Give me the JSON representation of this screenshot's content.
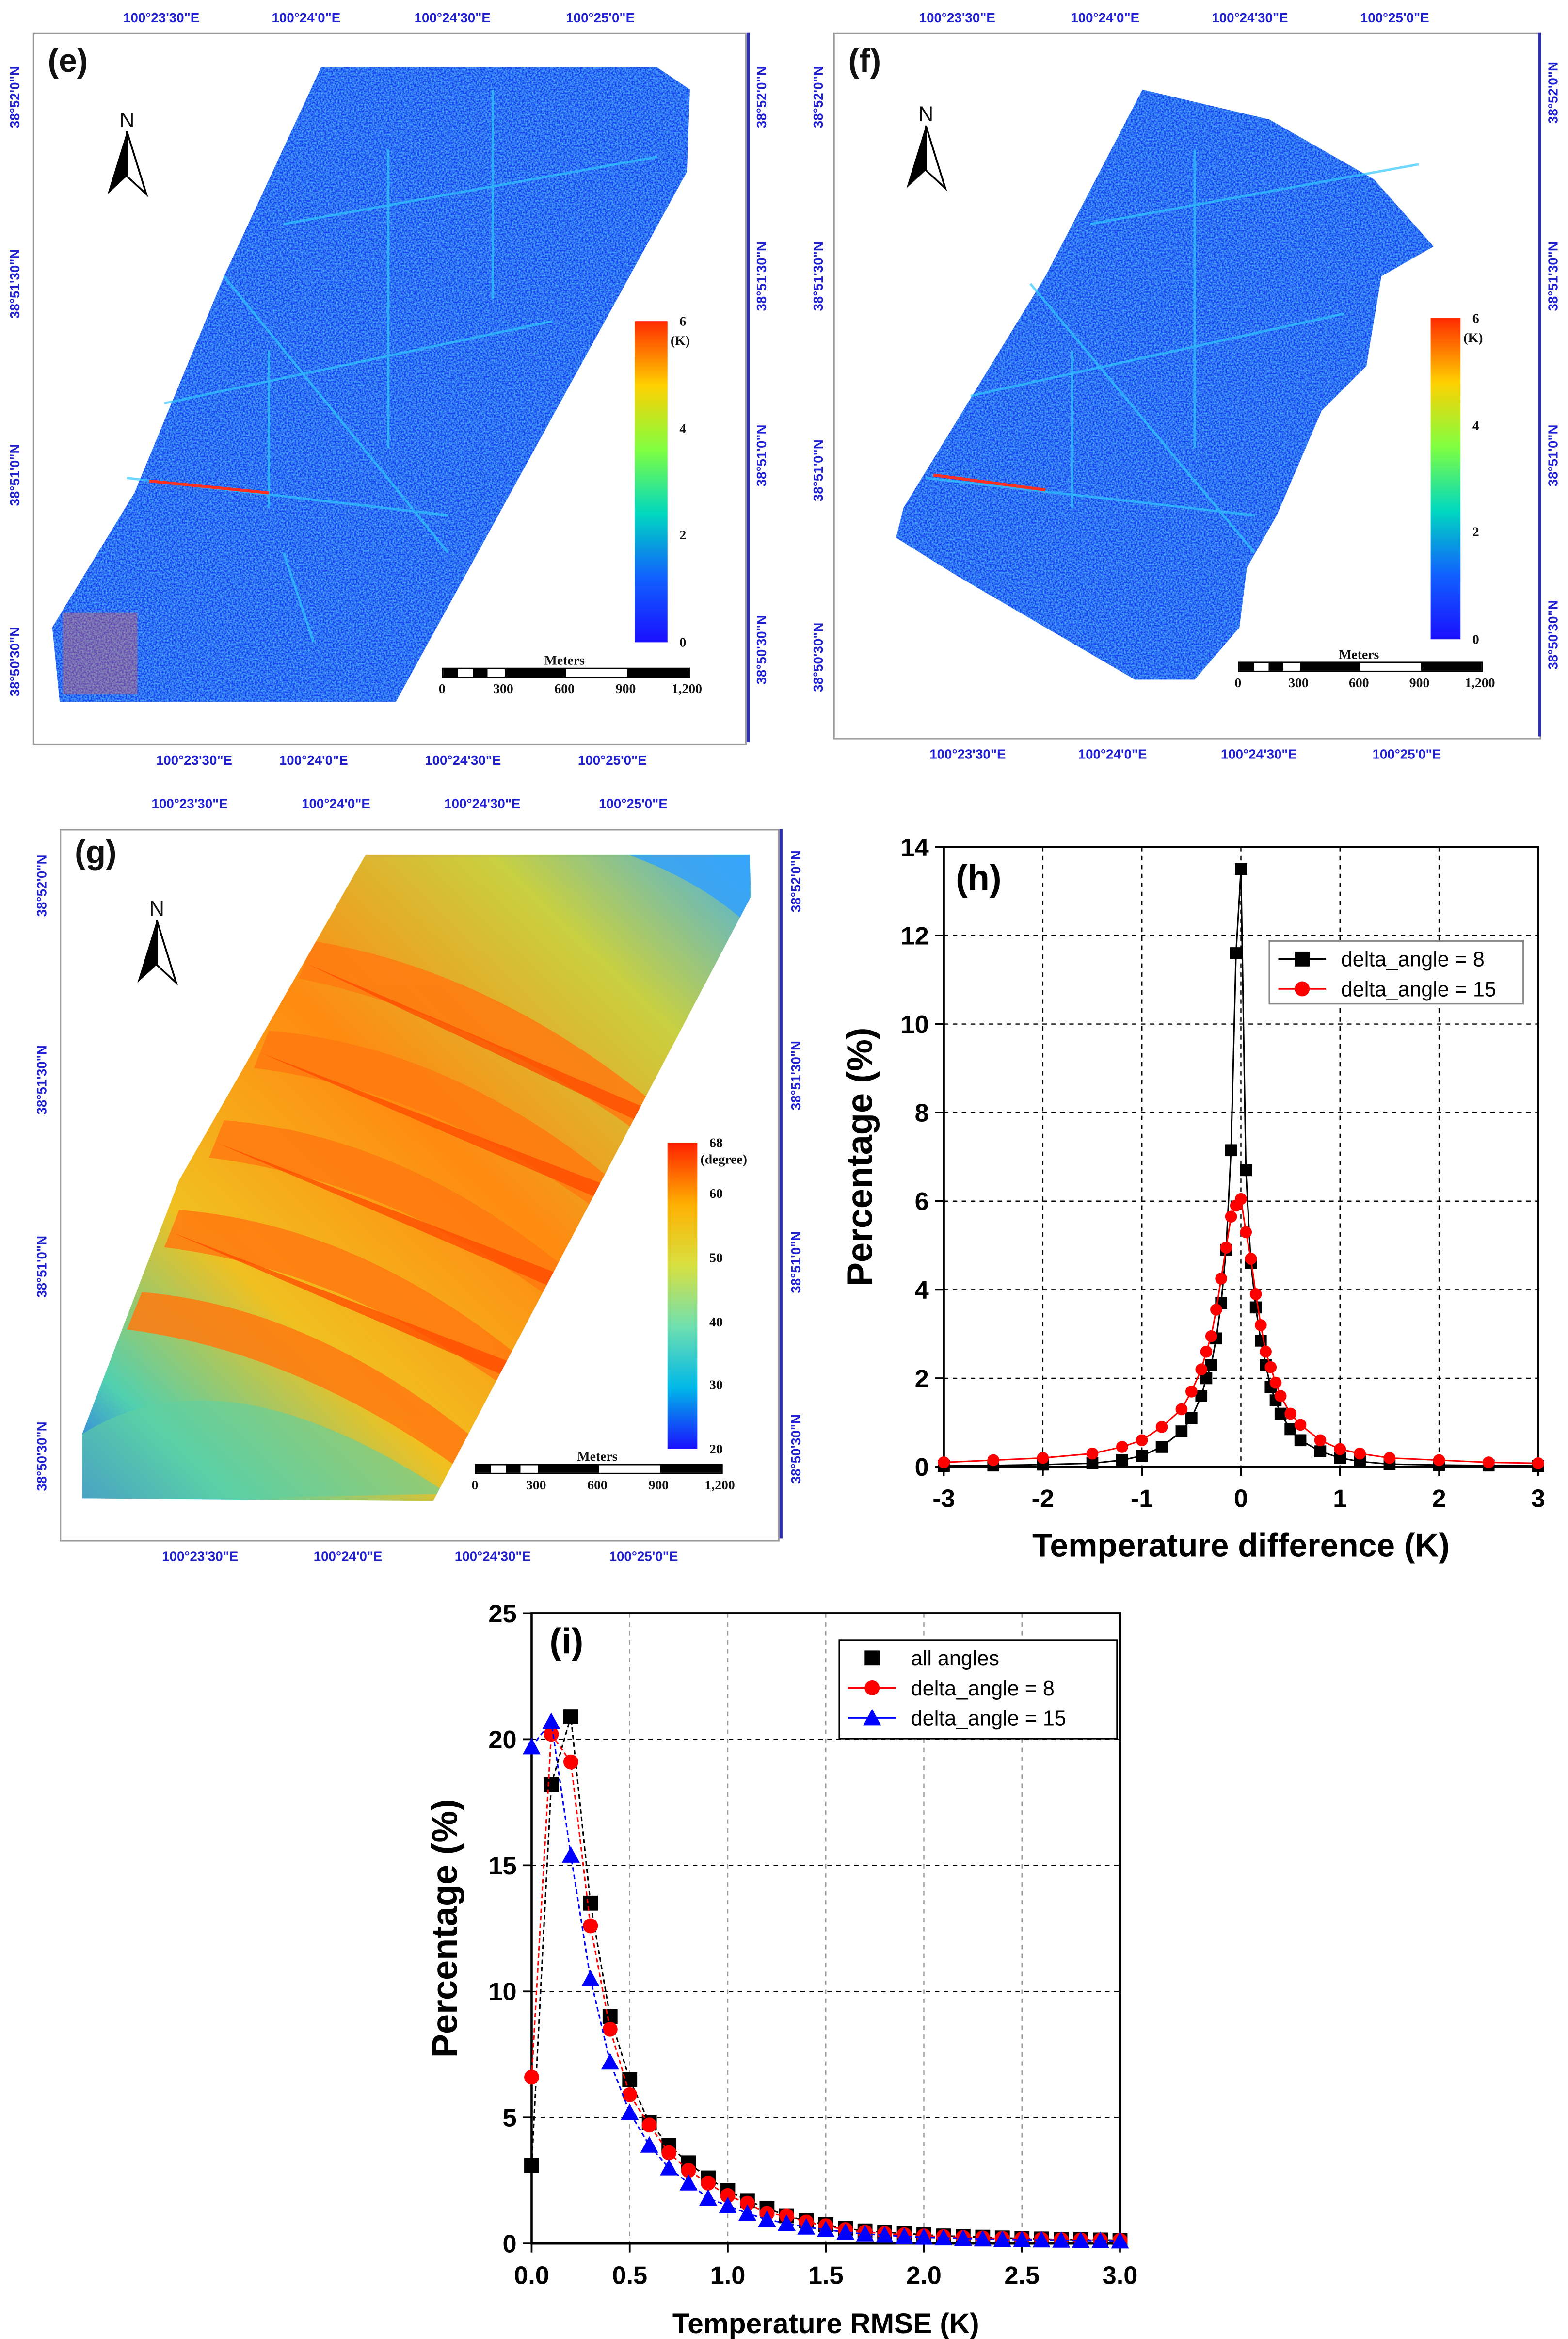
{
  "maps": [
    {
      "id": "e",
      "label": "(e)",
      "north": "N",
      "lon_top": [
        "100°23'30\"E",
        "100°24'0\"E",
        "100°24'30\"E",
        "100°25'0\"E"
      ],
      "lon_bottom": [
        "100°23'30\"E",
        "100°24'0\"E",
        "100°24'30\"E",
        "100°25'0\"E"
      ],
      "lat_left": [
        "38°52'0\"N",
        "38°51'30\"N",
        "38°51'0\"N",
        "38°50'30\"N"
      ],
      "lat_right": [
        "38°52'0\"N",
        "38°51'30\"N",
        "38°51'0\"N",
        "38°50'30\"N"
      ],
      "legend": {
        "unit": "(K)",
        "ticks": [
          "6",
          "4",
          "2",
          "0"
        ],
        "colors": [
          "#ff2a00",
          "#ffd000",
          "#80ff40",
          "#00d8c0",
          "#1060ff",
          "#1a10ff"
        ]
      },
      "scale": {
        "title": "Meters",
        "labels": [
          "0",
          "300",
          "600",
          "900",
          "1,200"
        ]
      }
    },
    {
      "id": "f",
      "label": "(f)",
      "north": "N",
      "lon_top": [
        "100°23'30\"E",
        "100°24'0\"E",
        "100°24'30\"E",
        "100°25'0\"E"
      ],
      "lon_bottom": [
        "100°23'30\"E",
        "100°24'0\"E",
        "100°24'30\"E",
        "100°25'0\"E"
      ],
      "lat_left": [
        "38°52'0\"N",
        "38°51'30\"N",
        "38°51'0\"N",
        "38°50'30\"N"
      ],
      "lat_right": [
        "38°52'0\"N",
        "38°51'30\"N",
        "38°51'0\"N",
        "38°50'30\"N"
      ],
      "legend": {
        "unit": "(K)",
        "ticks": [
          "6",
          "4",
          "2",
          "0"
        ],
        "colors": [
          "#ff2a00",
          "#ffd000",
          "#80ff40",
          "#00d8c0",
          "#1060ff",
          "#1a10ff"
        ]
      },
      "scale": {
        "title": "Meters",
        "labels": [
          "0",
          "300",
          "600",
          "900",
          "1,200"
        ]
      }
    },
    {
      "id": "g",
      "label": "(g)",
      "north": "N",
      "lon_top": [
        "100°23'30\"E",
        "100°24'0\"E",
        "100°24'30\"E",
        "100°25'0\"E"
      ],
      "lon_bottom": [
        "100°23'30\"E",
        "100°24'0\"E",
        "100°24'30\"E",
        "100°25'0\"E"
      ],
      "lat_left": [
        "38°52'0\"N",
        "38°51'30\"N",
        "38°51'0\"N",
        "38°50'30\"N"
      ],
      "lat_right": [
        "38°52'0\"N",
        "38°51'30\"N",
        "38°51'0\"N",
        "38°50'30\"N"
      ],
      "legend": {
        "unit": "(degree)",
        "ticks": [
          "68",
          "60",
          "50",
          "40",
          "30",
          "20"
        ],
        "colors": [
          "#ff2000",
          "#ffb000",
          "#d8e040",
          "#70e0b0",
          "#00b8e8",
          "#1a10ff"
        ]
      },
      "scale": {
        "title": "Meters",
        "labels": [
          "0",
          "300",
          "600",
          "900",
          "1,200"
        ]
      }
    }
  ],
  "chart_data": [
    {
      "id": "h",
      "type": "scatter",
      "panel_label": "(h)",
      "xlabel": "Temperature difference (K)",
      "ylabel": "Percentage (%)",
      "xlim": [
        -3,
        3
      ],
      "ylim": [
        0,
        14
      ],
      "xticks": [
        "-3",
        "-2",
        "-1",
        "0",
        "1",
        "2",
        "3"
      ],
      "yticks": [
        "0",
        "2",
        "4",
        "6",
        "8",
        "10",
        "12",
        "14"
      ],
      "grid": true,
      "legend_position": "top-right",
      "x": [
        -3,
        -2.5,
        -2,
        -1.5,
        -1.2,
        -1,
        -0.8,
        -0.6,
        -0.5,
        -0.4,
        -0.35,
        -0.3,
        -0.25,
        -0.2,
        -0.15,
        -0.1,
        -0.05,
        0,
        0.05,
        0.1,
        0.15,
        0.2,
        0.25,
        0.3,
        0.35,
        0.4,
        0.5,
        0.6,
        0.8,
        1,
        1.2,
        1.5,
        2,
        2.5,
        3
      ],
      "series": [
        {
          "name": "delta_angle =  8",
          "color": "#000000",
          "marker": "square",
          "values": [
            0.02,
            0.03,
            0.05,
            0.08,
            0.15,
            0.25,
            0.45,
            0.8,
            1.1,
            1.6,
            2.0,
            2.3,
            2.9,
            3.7,
            4.9,
            7.15,
            11.6,
            13.5,
            6.7,
            4.6,
            3.6,
            2.85,
            2.3,
            1.8,
            1.5,
            1.2,
            0.85,
            0.6,
            0.35,
            0.2,
            0.12,
            0.06,
            0.04,
            0.03,
            0.02
          ]
        },
        {
          "name": "delta_angle = 15",
          "color": "#ff0000",
          "marker": "circle",
          "values": [
            0.1,
            0.15,
            0.2,
            0.3,
            0.45,
            0.6,
            0.9,
            1.3,
            1.7,
            2.2,
            2.6,
            2.95,
            3.55,
            4.25,
            4.95,
            5.65,
            5.9,
            6.05,
            5.3,
            4.7,
            3.9,
            3.2,
            2.6,
            2.25,
            1.9,
            1.6,
            1.2,
            0.95,
            0.6,
            0.4,
            0.3,
            0.2,
            0.15,
            0.1,
            0.08
          ]
        }
      ]
    },
    {
      "id": "i",
      "type": "line",
      "panel_label": "(i)",
      "xlabel": "Temperature RMSE (K)",
      "ylabel": "Percentage (%)",
      "xlim": [
        0,
        3
      ],
      "ylim": [
        0,
        25
      ],
      "xticks": [
        "0.0",
        "0.5",
        "1.0",
        "1.5",
        "2.0",
        "2.5",
        "3.0"
      ],
      "yticks": [
        "0",
        "5",
        "10",
        "15",
        "20",
        "25"
      ],
      "grid": true,
      "legend_position": "top-right",
      "x": [
        0,
        0.1,
        0.2,
        0.3,
        0.4,
        0.5,
        0.6,
        0.7,
        0.8,
        0.9,
        1.0,
        1.1,
        1.2,
        1.3,
        1.4,
        1.5,
        1.6,
        1.7,
        1.8,
        1.9,
        2.0,
        2.1,
        2.2,
        2.3,
        2.4,
        2.5,
        2.6,
        2.7,
        2.8,
        2.9,
        3.0
      ],
      "series": [
        {
          "name": "all angles",
          "color": "#000000",
          "marker": "square",
          "values": [
            3.1,
            18.2,
            20.9,
            13.5,
            9.0,
            6.5,
            4.8,
            3.9,
            3.2,
            2.6,
            2.1,
            1.7,
            1.4,
            1.1,
            0.9,
            0.75,
            0.6,
            0.5,
            0.45,
            0.4,
            0.35,
            0.3,
            0.28,
            0.25,
            0.22,
            0.2,
            0.18,
            0.16,
            0.15,
            0.14,
            0.13
          ]
        },
        {
          "name": "delta_angle =  8",
          "color": "#ff0000",
          "marker": "circle",
          "values": [
            6.6,
            20.2,
            19.1,
            12.6,
            8.5,
            5.9,
            4.7,
            3.6,
            2.9,
            2.4,
            1.9,
            1.6,
            1.2,
            1.1,
            0.85,
            0.7,
            0.55,
            0.45,
            0.4,
            0.35,
            0.3,
            0.27,
            0.24,
            0.22,
            0.2,
            0.18,
            0.16,
            0.15,
            0.14,
            0.13,
            0.12
          ]
        },
        {
          "name": "delta_angle = 15",
          "color": "#0000ff",
          "marker": "triangle",
          "values": [
            19.7,
            20.7,
            15.4,
            10.5,
            7.2,
            5.2,
            3.9,
            3.0,
            2.4,
            1.8,
            1.5,
            1.2,
            0.95,
            0.8,
            0.65,
            0.55,
            0.45,
            0.38,
            0.33,
            0.28,
            0.25,
            0.22,
            0.2,
            0.18,
            0.16,
            0.15,
            0.14,
            0.13,
            0.12,
            0.11,
            0.1
          ]
        }
      ]
    }
  ]
}
